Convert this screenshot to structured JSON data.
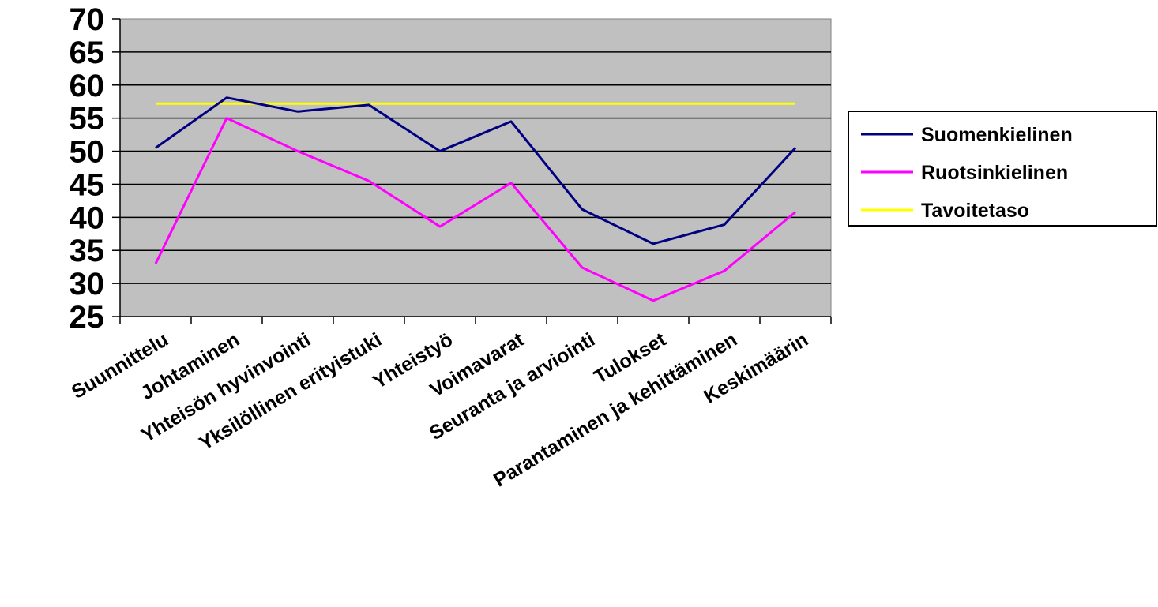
{
  "chart_data": {
    "type": "line",
    "title": "",
    "xlabel": "",
    "ylabel": "",
    "categories": [
      "Suunnittelu",
      "Johtaminen",
      "Yhteisön hyvinvointi",
      "Yksilöllinen erityistuki",
      "Yhteistyö",
      "Voimavarat",
      "Seuranta ja arviointi",
      "Tulokset",
      "Parantaminen ja kehittäminen",
      "Keskimäärin"
    ],
    "ylim": [
      25,
      70
    ],
    "yticks": [
      "25",
      "30",
      "35",
      "40",
      "45",
      "50",
      "55",
      "60",
      "65",
      "70"
    ],
    "grid": true,
    "plot_background": "#c0c0c0",
    "legend_position": "right",
    "series": [
      {
        "name": "Suomenkielinen",
        "color": "#000080",
        "values": [
          50.5,
          58.1,
          56,
          57,
          50,
          54.5,
          41.2,
          36,
          38.9,
          50.5
        ]
      },
      {
        "name": "Ruotsinkielinen",
        "color": "#ff00ff",
        "values": [
          33,
          55,
          50,
          45.5,
          38.6,
          45.2,
          32.4,
          27.4,
          31.9,
          40.8
        ]
      },
      {
        "name": "Tavoitetaso",
        "color": "#ffff00",
        "values": [
          57.2,
          57.2,
          57.2,
          57.2,
          57.2,
          57.2,
          57.2,
          57.2,
          57.2,
          57.2
        ]
      }
    ]
  }
}
